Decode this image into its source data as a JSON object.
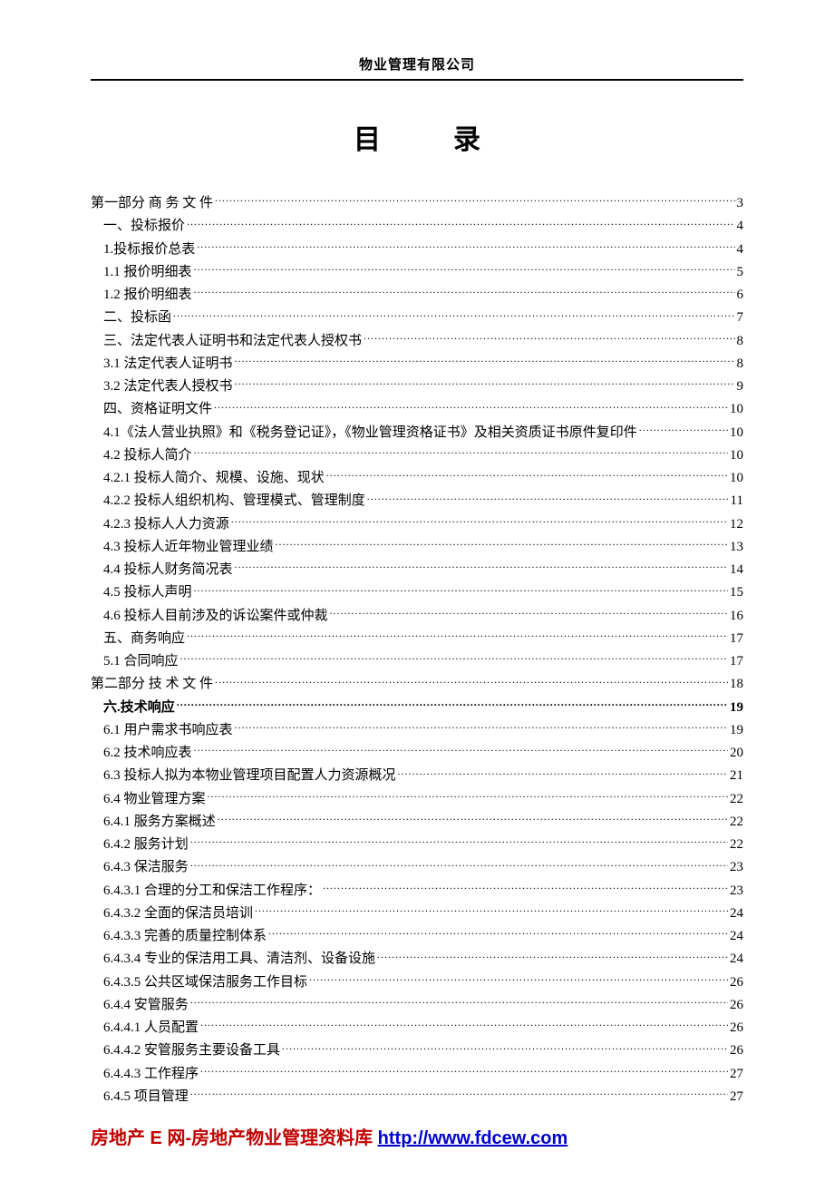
{
  "header": "物业管理有限公司",
  "title_a": "目",
  "title_b": "录",
  "toc": [
    {
      "label": "第一部分  商 务 文 件",
      "page": "3",
      "level": 0,
      "bold": false
    },
    {
      "label": "一、投标报价",
      "page": "4",
      "level": 1,
      "bold": false
    },
    {
      "label": "1.投标报价总表",
      "page": "4",
      "level": 1,
      "bold": false
    },
    {
      "label": "1.1 报价明细表",
      "page": "5",
      "level": 1,
      "bold": false
    },
    {
      "label": "1.2 报价明细表",
      "page": "6",
      "level": 1,
      "bold": false
    },
    {
      "label": "二、投标函",
      "page": "7",
      "level": 1,
      "bold": false
    },
    {
      "label": "三、法定代表人证明书和法定代表人授权书",
      "page": "8",
      "level": 1,
      "bold": false
    },
    {
      "label": "3.1 法定代表人证明书",
      "page": "8",
      "level": 1,
      "bold": false
    },
    {
      "label": "3.2 法定代表人授权书",
      "page": "9",
      "level": 1,
      "bold": false
    },
    {
      "label": "四、资格证明文件",
      "page": "10",
      "level": 1,
      "bold": false
    },
    {
      "label": "4.1《法人营业执照》和《税务登记证》，《物业管理资格证书》及相关资质证书原件复印件",
      "page": "10",
      "level": 1,
      "bold": false
    },
    {
      "label": "4.2 投标人简介",
      "page": "10",
      "level": 1,
      "bold": false
    },
    {
      "label": "4.2.1 投标人简介、规模、设施、现状",
      "page": "10",
      "level": 1,
      "bold": false
    },
    {
      "label": "4.2.2 投标人组织机构、管理模式、管理制度",
      "page": "11",
      "level": 1,
      "bold": false
    },
    {
      "label": "4.2.3 投标人人力资源",
      "page": "12",
      "level": 1,
      "bold": false
    },
    {
      "label": "4.3 投标人近年物业管理业绩",
      "page": "13",
      "level": 1,
      "bold": false
    },
    {
      "label": "4.4 投标人财务简况表",
      "page": "14",
      "level": 1,
      "bold": false
    },
    {
      "label": "4.5 投标人声明",
      "page": "15",
      "level": 1,
      "bold": false
    },
    {
      "label": "4.6 投标人目前涉及的诉讼案件或仲裁",
      "page": "16",
      "level": 1,
      "bold": false
    },
    {
      "label": "五、商务响应",
      "page": "17",
      "level": 1,
      "bold": false
    },
    {
      "label": "5.1 合同响应",
      "page": "17",
      "level": 1,
      "bold": false
    },
    {
      "label": "第二部分  技 术 文 件",
      "page": "18",
      "level": 0,
      "bold": false
    },
    {
      "label": "六.技术响应",
      "page": "19",
      "level": 1,
      "bold": true
    },
    {
      "label": "6.1 用户需求书响应表",
      "page": "19",
      "level": 1,
      "bold": false
    },
    {
      "label": "6.2 技术响应表",
      "page": "20",
      "level": 1,
      "bold": false
    },
    {
      "label": "6.3 投标人拟为本物业管理项目配置人力资源概况",
      "page": "21",
      "level": 1,
      "bold": false
    },
    {
      "label": "6.4 物业管理方案",
      "page": "22",
      "level": 1,
      "bold": false
    },
    {
      "label": "6.4.1 服务方案概述",
      "page": "22",
      "level": 1,
      "bold": false
    },
    {
      "label": "6.4.2 服务计划",
      "page": "22",
      "level": 1,
      "bold": false
    },
    {
      "label": "6.4.3 保洁服务",
      "page": "23",
      "level": 1,
      "bold": false
    },
    {
      "label": "6.4.3.1 合理的分工和保洁工作程序：",
      "page": "23",
      "level": 1,
      "bold": false
    },
    {
      "label": "6.4.3.2 全面的保洁员培训",
      "page": "24",
      "level": 1,
      "bold": false
    },
    {
      "label": "6.4.3.3 完善的质量控制体系",
      "page": "24",
      "level": 1,
      "bold": false
    },
    {
      "label": "6.4.3.4 专业的保洁用工具、清洁剂、设备设施",
      "page": "24",
      "level": 1,
      "bold": false
    },
    {
      "label": "6.4.3.5 公共区域保洁服务工作目标",
      "page": "26",
      "level": 1,
      "bold": false
    },
    {
      "label": "6.4.4 安管服务",
      "page": "26",
      "level": 1,
      "bold": false
    },
    {
      "label": "6.4.4.1 人员配置",
      "page": "26",
      "level": 1,
      "bold": false
    },
    {
      "label": "6.4.4.2 安管服务主要设备工具",
      "page": "26",
      "level": 1,
      "bold": false
    },
    {
      "label": "6.4.4.3 工作程序",
      "page": "27",
      "level": 1,
      "bold": false
    },
    {
      "label": "6.4.5 项目管理",
      "page": "27",
      "level": 1,
      "bold": false
    }
  ],
  "footer": {
    "text_a": "房地产 E 网",
    "text_b": "-房地产物业管理资料库 ",
    "url": "http://www.fdcew.com"
  }
}
